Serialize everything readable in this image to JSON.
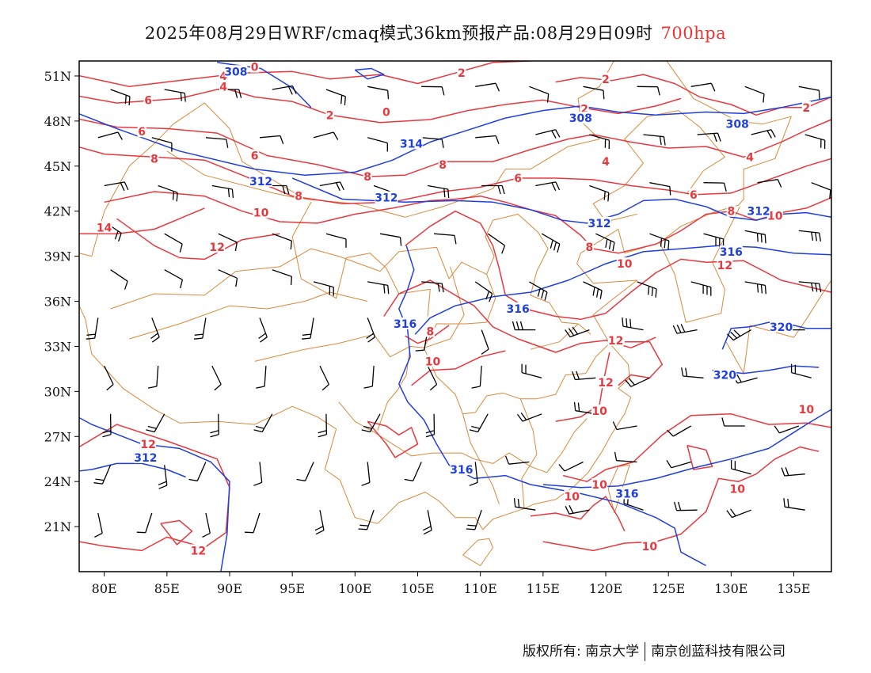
{
  "title": {
    "main": "2025年08月29日WRF/cmaq模式36km预报产品:08月29日09时",
    "level": "700hpa"
  },
  "map": {
    "lon_range": [
      78,
      138
    ],
    "lat_range": [
      18,
      52
    ],
    "lon_ticks": [
      "80E",
      "85E",
      "90E",
      "95E",
      "100E",
      "105E",
      "110E",
      "115E",
      "120E",
      "125E",
      "130E",
      "135E"
    ],
    "lon_tick_values": [
      80,
      85,
      90,
      95,
      100,
      105,
      110,
      115,
      120,
      125,
      130,
      135
    ],
    "lat_ticks": [
      "21N",
      "24N",
      "27N",
      "30N",
      "33N",
      "36N",
      "39N",
      "42N",
      "45N",
      "48N",
      "51N"
    ],
    "lat_tick_values": [
      21,
      24,
      27,
      30,
      33,
      36,
      39,
      42,
      45,
      48,
      51
    ],
    "colors": {
      "temperature": "#e8383d",
      "height": "#1f3fe0",
      "boundary": "#d98a3a",
      "wind": "#000000"
    },
    "height_labels": [
      {
        "text": "308",
        "lon": 90.5,
        "lat": 51.3
      },
      {
        "text": "308",
        "lon": 118,
        "lat": 48.2
      },
      {
        "text": "308",
        "lon": 130.5,
        "lat": 47.8
      },
      {
        "text": "314",
        "lon": 104.5,
        "lat": 46.5
      },
      {
        "text": "312",
        "lon": 92.5,
        "lat": 44.0
      },
      {
        "text": "312",
        "lon": 102.5,
        "lat": 42.9
      },
      {
        "text": "312",
        "lon": 119.5,
        "lat": 41.2
      },
      {
        "text": "312",
        "lon": 132.2,
        "lat": 42.0
      },
      {
        "text": "316",
        "lon": 130,
        "lat": 39.3
      },
      {
        "text": "316",
        "lon": 113,
        "lat": 35.5
      },
      {
        "text": "316",
        "lon": 104,
        "lat": 34.5
      },
      {
        "text": "320",
        "lon": 134,
        "lat": 34.3
      },
      {
        "text": "320",
        "lon": 129.5,
        "lat": 31.1
      },
      {
        "text": "312",
        "lon": 83.3,
        "lat": 25.6
      },
      {
        "text": "316",
        "lon": 108.5,
        "lat": 24.8
      },
      {
        "text": "316",
        "lon": 121.7,
        "lat": 23.2
      }
    ],
    "temp_labels": [
      {
        "text": "0",
        "lon": 92,
        "lat": 51.6
      },
      {
        "text": "4",
        "lon": 89.5,
        "lat": 51.0
      },
      {
        "text": "4",
        "lon": 89.5,
        "lat": 50.3
      },
      {
        "text": "6",
        "lon": 83.5,
        "lat": 49.4
      },
      {
        "text": "2",
        "lon": 108.5,
        "lat": 51.2
      },
      {
        "text": "0",
        "lon": 102.5,
        "lat": 48.6
      },
      {
        "text": "2",
        "lon": 98,
        "lat": 48.4
      },
      {
        "text": "2",
        "lon": 120,
        "lat": 50.8
      },
      {
        "text": "2",
        "lon": 118.3,
        "lat": 48.8
      },
      {
        "text": "2",
        "lon": 136,
        "lat": 48.9
      },
      {
        "text": "6",
        "lon": 83,
        "lat": 47.3
      },
      {
        "text": "8",
        "lon": 84,
        "lat": 45.5
      },
      {
        "text": "6",
        "lon": 92,
        "lat": 45.7
      },
      {
        "text": "8",
        "lon": 101,
        "lat": 44.3
      },
      {
        "text": "8",
        "lon": 107,
        "lat": 45.1
      },
      {
        "text": "6",
        "lon": 113,
        "lat": 44.2
      },
      {
        "text": "4",
        "lon": 120,
        "lat": 45.3
      },
      {
        "text": "4",
        "lon": 131.5,
        "lat": 45.6
      },
      {
        "text": "6",
        "lon": 127,
        "lat": 43.1
      },
      {
        "text": "8",
        "lon": 95.5,
        "lat": 43.0
      },
      {
        "text": "10",
        "lon": 92.5,
        "lat": 41.9
      },
      {
        "text": "8",
        "lon": 130,
        "lat": 42.0
      },
      {
        "text": "10",
        "lon": 133.5,
        "lat": 41.7
      },
      {
        "text": "14",
        "lon": 80,
        "lat": 40.9
      },
      {
        "text": "12",
        "lon": 89,
        "lat": 39.6
      },
      {
        "text": "8",
        "lon": 118.7,
        "lat": 39.6
      },
      {
        "text": "10",
        "lon": 121.5,
        "lat": 38.5
      },
      {
        "text": "12",
        "lon": 129.5,
        "lat": 38.4
      },
      {
        "text": "8",
        "lon": 106,
        "lat": 34.0
      },
      {
        "text": "12",
        "lon": 120.8,
        "lat": 33.4
      },
      {
        "text": "10",
        "lon": 106.2,
        "lat": 32.0
      },
      {
        "text": "12",
        "lon": 120,
        "lat": 30.6
      },
      {
        "text": "10",
        "lon": 119.5,
        "lat": 28.7
      },
      {
        "text": "10",
        "lon": 136,
        "lat": 28.8
      },
      {
        "text": "12",
        "lon": 83.5,
        "lat": 26.5
      },
      {
        "text": "10",
        "lon": 119.5,
        "lat": 23.8
      },
      {
        "text": "10",
        "lon": 117.3,
        "lat": 23.0
      },
      {
        "text": "10",
        "lon": 130.5,
        "lat": 23.5
      },
      {
        "text": "10",
        "lon": 123.5,
        "lat": 19.7
      },
      {
        "text": "12",
        "lon": 87.5,
        "lat": 19.4
      }
    ]
  },
  "copyright": {
    "left": "版权所有: 南京大学",
    "right": "南京创蓝科技有限公司"
  }
}
